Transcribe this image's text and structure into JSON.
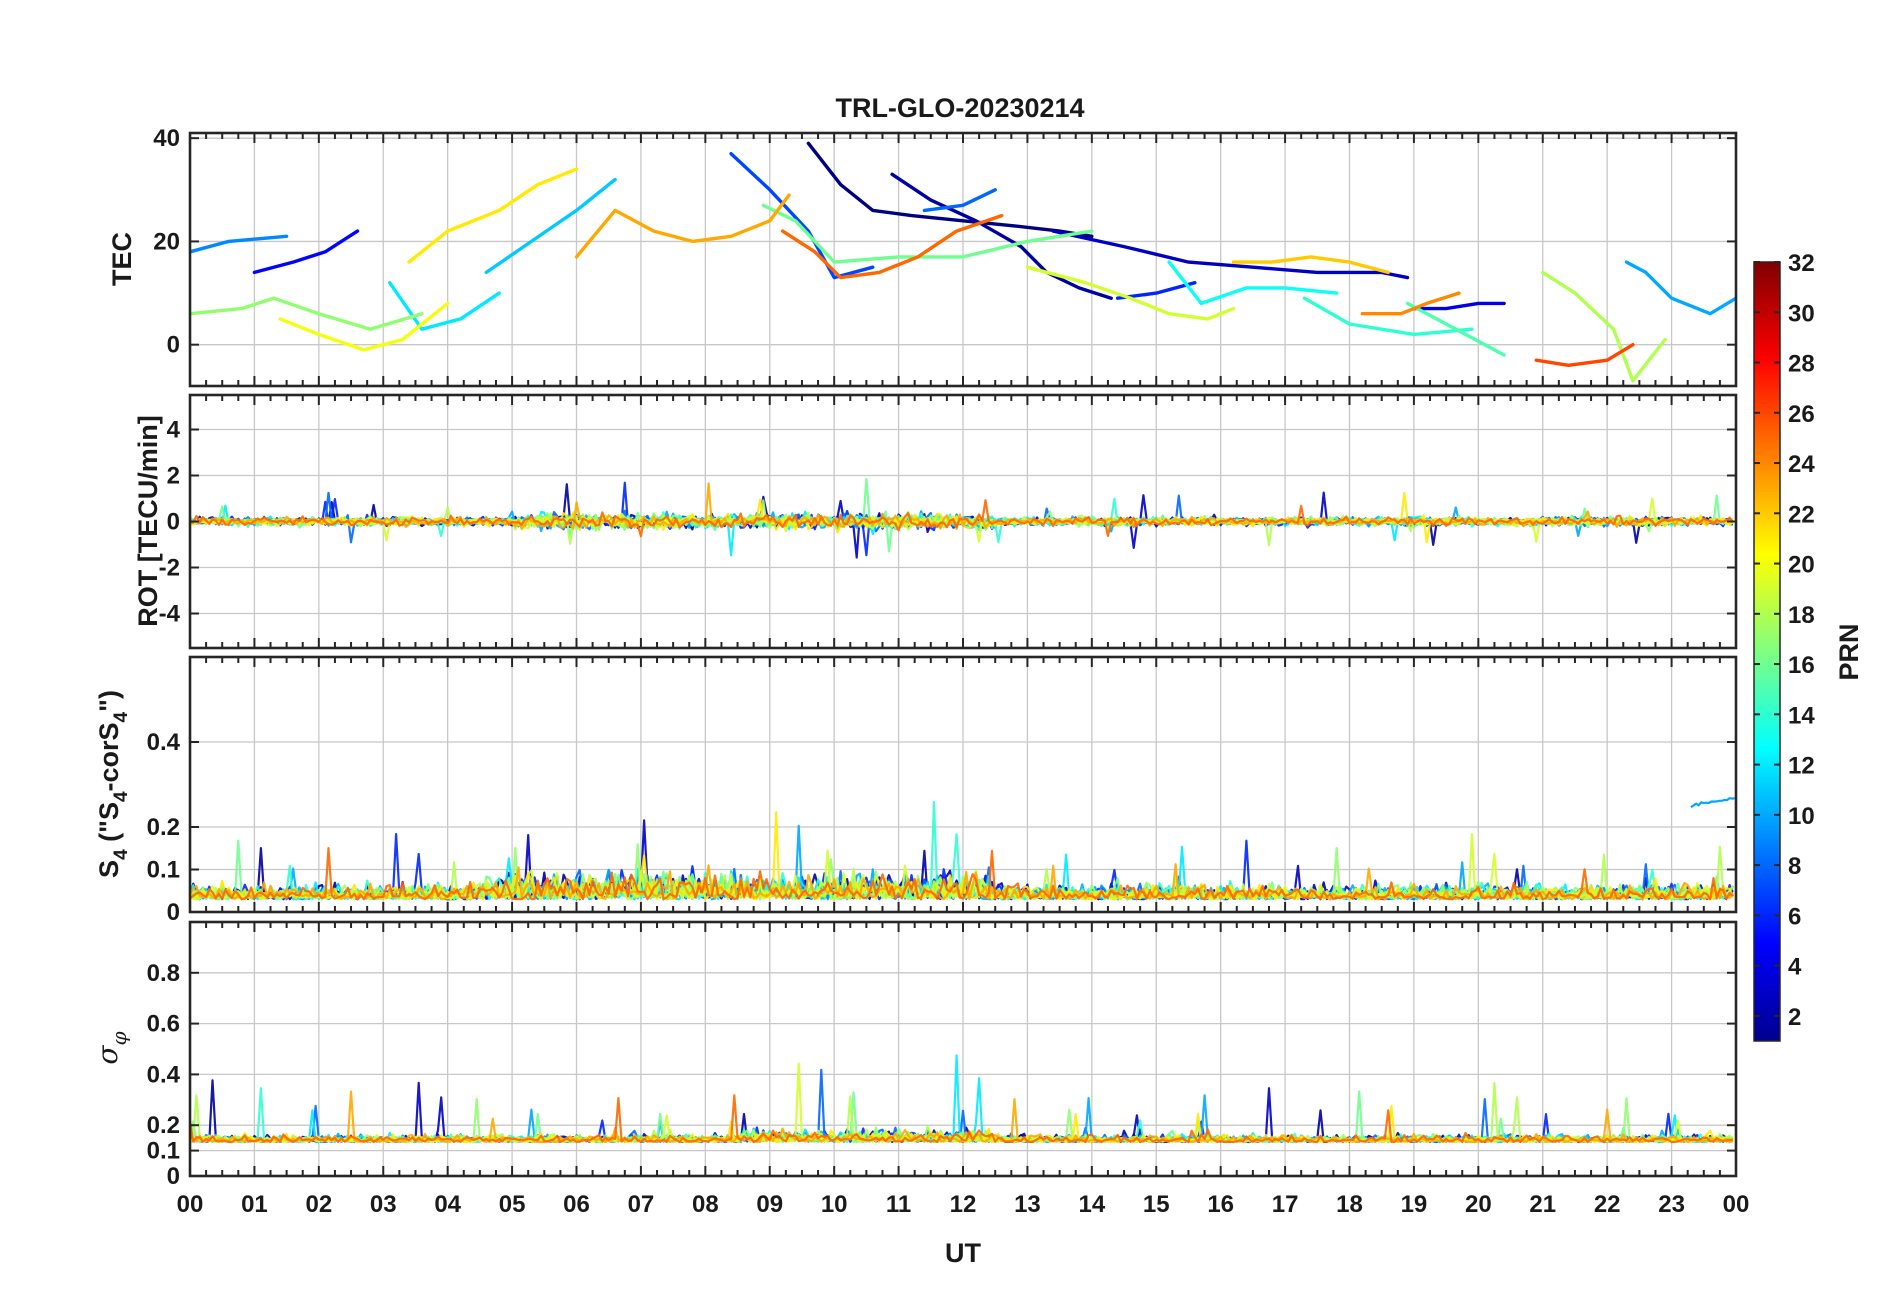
{
  "chart_data": [
    {
      "type": "line",
      "title": "TRL-GLO-20230214",
      "ylabel": "TEC",
      "ylim": [
        -8,
        41
      ],
      "yticks": [
        "0",
        "20",
        "40"
      ],
      "ytick_values": [
        0,
        20,
        40
      ],
      "series": [
        {
          "prn": 1,
          "x": [
            9.6,
            10.1,
            10.6,
            11.2,
            12.0,
            12.8,
            13.5,
            14.0
          ],
          "y": [
            39,
            31,
            26,
            25,
            24,
            23,
            22,
            21
          ]
        },
        {
          "prn": 2,
          "x": [
            10.9,
            11.5,
            12.2,
            12.9,
            13.3,
            13.8,
            14.3
          ],
          "y": [
            33,
            28,
            24,
            19,
            14,
            11,
            9
          ]
        },
        {
          "prn": 3,
          "x": [
            13.4,
            14.5,
            15.5,
            16.5,
            17.5,
            18.5,
            18.9
          ],
          "y": [
            22,
            19,
            16,
            15,
            14,
            14,
            13
          ]
        },
        {
          "prn": 4,
          "x": [
            19.0,
            19.5,
            20.0,
            20.4
          ],
          "y": [
            7,
            7,
            8,
            8
          ]
        },
        {
          "prn": 5,
          "x": [
            1.0,
            1.6,
            2.1,
            2.6
          ],
          "y": [
            14,
            16,
            18,
            22
          ]
        },
        {
          "prn": 6,
          "x": [
            14.4,
            15.0,
            15.6
          ],
          "y": [
            9,
            10,
            12
          ]
        },
        {
          "prn": 7,
          "x": [
            8.4,
            9.0,
            9.6,
            10.0,
            10.6
          ],
          "y": [
            37,
            30,
            22,
            13,
            15
          ]
        },
        {
          "prn": 8,
          "x": [
            11.4,
            12.0,
            12.5
          ],
          "y": [
            26,
            27,
            30
          ]
        },
        {
          "prn": 9,
          "x": [
            0.0,
            0.6,
            1.5
          ],
          "y": [
            18,
            20,
            21
          ]
        },
        {
          "prn": 10,
          "x": [
            22.3,
            22.6,
            23.0,
            23.6,
            24.0
          ],
          "y": [
            16,
            14,
            9,
            6,
            9
          ]
        },
        {
          "prn": 11,
          "x": [
            4.6,
            5.3,
            6.0,
            6.6
          ],
          "y": [
            14,
            20,
            26,
            32
          ]
        },
        {
          "prn": 12,
          "x": [
            3.1,
            3.6,
            4.2,
            4.8
          ],
          "y": [
            12,
            3,
            5,
            10
          ]
        },
        {
          "prn": 13,
          "x": [
            15.2,
            15.7,
            16.4,
            17.0,
            17.8
          ],
          "y": [
            16,
            8,
            11,
            11,
            10
          ]
        },
        {
          "prn": 14,
          "x": [
            17.3,
            18.0,
            19.0,
            19.9
          ],
          "y": [
            9,
            4,
            2,
            3
          ]
        },
        {
          "prn": 15,
          "x": [
            18.9,
            19.5,
            20.4
          ],
          "y": [
            8,
            4,
            -2
          ]
        },
        {
          "prn": 16,
          "x": [
            8.9,
            9.4,
            10.0,
            11.0,
            12.0,
            13.0,
            14.0
          ],
          "y": [
            27,
            24,
            16,
            17,
            17,
            20,
            22
          ]
        },
        {
          "prn": 17,
          "x": [
            0.0,
            0.8,
            1.3,
            2.0,
            2.8,
            3.6
          ],
          "y": [
            6,
            7,
            9,
            6,
            3,
            6
          ]
        },
        {
          "prn": 18,
          "x": [
            21.0,
            21.5,
            22.1,
            22.4,
            22.9
          ],
          "y": [
            14,
            10,
            3,
            -7,
            1
          ]
        },
        {
          "prn": 19,
          "x": [
            13.0,
            13.9,
            14.6,
            15.2,
            15.8,
            16.2
          ],
          "y": [
            15,
            12,
            9,
            6,
            5,
            7
          ]
        },
        {
          "prn": 20,
          "x": [
            1.4,
            2.0,
            2.7,
            3.3,
            4.0
          ],
          "y": [
            5,
            2,
            -1,
            1,
            8
          ]
        },
        {
          "prn": 21,
          "x": [
            3.4,
            4.0,
            4.8,
            5.4,
            6.0
          ],
          "y": [
            16,
            22,
            26,
            31,
            34
          ]
        },
        {
          "prn": 22,
          "x": [
            16.2,
            16.8,
            17.4,
            18.0,
            18.6
          ],
          "y": [
            16,
            16,
            17,
            16,
            14
          ]
        },
        {
          "prn": 23,
          "x": [
            6.0,
            6.6,
            7.2,
            7.8,
            8.4,
            9.0,
            9.3
          ],
          "y": [
            17,
            26,
            22,
            20,
            21,
            24,
            29
          ]
        },
        {
          "prn": 24,
          "x": [
            18.2,
            18.8,
            19.2,
            19.7
          ],
          "y": [
            6,
            6,
            8,
            10
          ]
        },
        {
          "prn": 25,
          "x": [
            9.2,
            9.7,
            10.1,
            10.7,
            11.3,
            11.9,
            12.6
          ],
          "y": [
            22,
            18,
            13,
            14,
            17,
            22,
            25
          ]
        },
        {
          "prn": 26,
          "x": [
            20.9,
            21.4,
            22.0,
            22.4
          ],
          "y": [
            -3,
            -4,
            -3,
            0
          ]
        }
      ]
    },
    {
      "type": "line",
      "ylabel": "ROT [TECU/min]",
      "ylim": [
        -5.5,
        5.5
      ],
      "yticks": [
        "-4",
        "-2",
        "0",
        "2",
        "4"
      ],
      "ytick_values": [
        -4,
        -2,
        0,
        2,
        4
      ],
      "noise_band": {
        "base": 0,
        "typical_amplitude": 0.3,
        "max_amplitude": 1.8,
        "active_period_ut": [
          5,
          12.5
        ]
      }
    },
    {
      "type": "line",
      "ylabel_main": "S",
      "ylabel_sub1": "4",
      "ylabel_mid": " (\"S",
      "ylabel_sub2": "4",
      "ylabel_mid2": "-corS",
      "ylabel_sub3": "4",
      "ylabel_end": "\")",
      "ylim": [
        0,
        0.6
      ],
      "yticks": [
        "0",
        "0.1",
        "0.2",
        "0.4"
      ],
      "ytick_values": [
        0,
        0.1,
        0.2,
        0.4
      ],
      "noise_band": {
        "base": 0.05,
        "typical_amplitude": 0.05,
        "max_amplitude": 0.21,
        "active_period_ut": [
          4.5,
          12.5
        ]
      },
      "outlier_segment": {
        "x": [
          23.3,
          24.0
        ],
        "y": [
          0.25,
          0.27
        ],
        "prn": 10
      }
    },
    {
      "type": "line",
      "ylabel": "σ",
      "ylabel_sub": "φ",
      "ylim": [
        0,
        1
      ],
      "yticks": [
        "0",
        "0.1",
        "0.2",
        "0.4",
        "0.6",
        "0.8"
      ],
      "ytick_values": [
        0,
        0.1,
        0.2,
        0.4,
        0.6,
        0.8
      ],
      "noise_band": {
        "base": 0.15,
        "typical_amplitude": 0.04,
        "max_amplitude": 0.35,
        "active_period_ut": [
          8.5,
          12.5
        ]
      }
    }
  ],
  "x_axis": {
    "label": "UT",
    "range": [
      0,
      24
    ],
    "ticks": [
      "00",
      "01",
      "02",
      "03",
      "04",
      "05",
      "06",
      "07",
      "08",
      "09",
      "10",
      "11",
      "12",
      "13",
      "14",
      "15",
      "16",
      "17",
      "18",
      "19",
      "20",
      "21",
      "22",
      "23",
      "00"
    ]
  },
  "colorbar": {
    "label": "PRN",
    "range": [
      1,
      32
    ],
    "ticks": [
      "2",
      "4",
      "6",
      "8",
      "10",
      "12",
      "14",
      "16",
      "18",
      "20",
      "22",
      "24",
      "26",
      "28",
      "30",
      "32"
    ],
    "tick_values": [
      2,
      4,
      6,
      8,
      10,
      12,
      14,
      16,
      18,
      20,
      22,
      24,
      26,
      28,
      30,
      32
    ],
    "colormap": "jet"
  },
  "grid": true
}
